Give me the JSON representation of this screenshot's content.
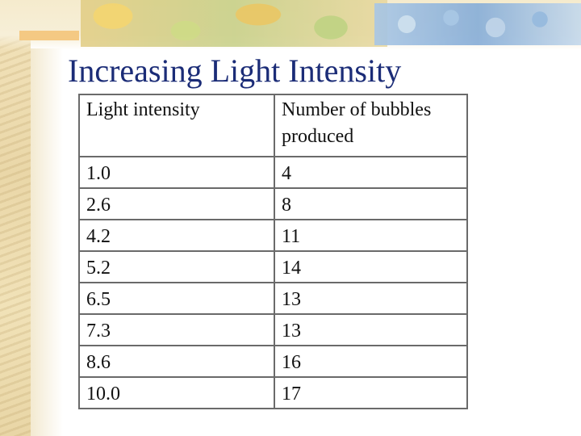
{
  "slide": {
    "title": "Increasing Light Intensity"
  },
  "table": {
    "headers": [
      "Light intensity",
      "Number of bubbles produced"
    ],
    "rows": [
      [
        "1.0",
        "4"
      ],
      [
        "2.6",
        "8"
      ],
      [
        "4.2",
        "11"
      ],
      [
        "5.2",
        "14"
      ],
      [
        "6.5",
        "13"
      ],
      [
        "7.3",
        "13"
      ],
      [
        "8.6",
        "16"
      ],
      [
        "10.0",
        "17"
      ]
    ]
  },
  "colors": {
    "title": "#1b2c77",
    "table_border": "#6a6a6a",
    "parchment": "#ead7a8"
  }
}
